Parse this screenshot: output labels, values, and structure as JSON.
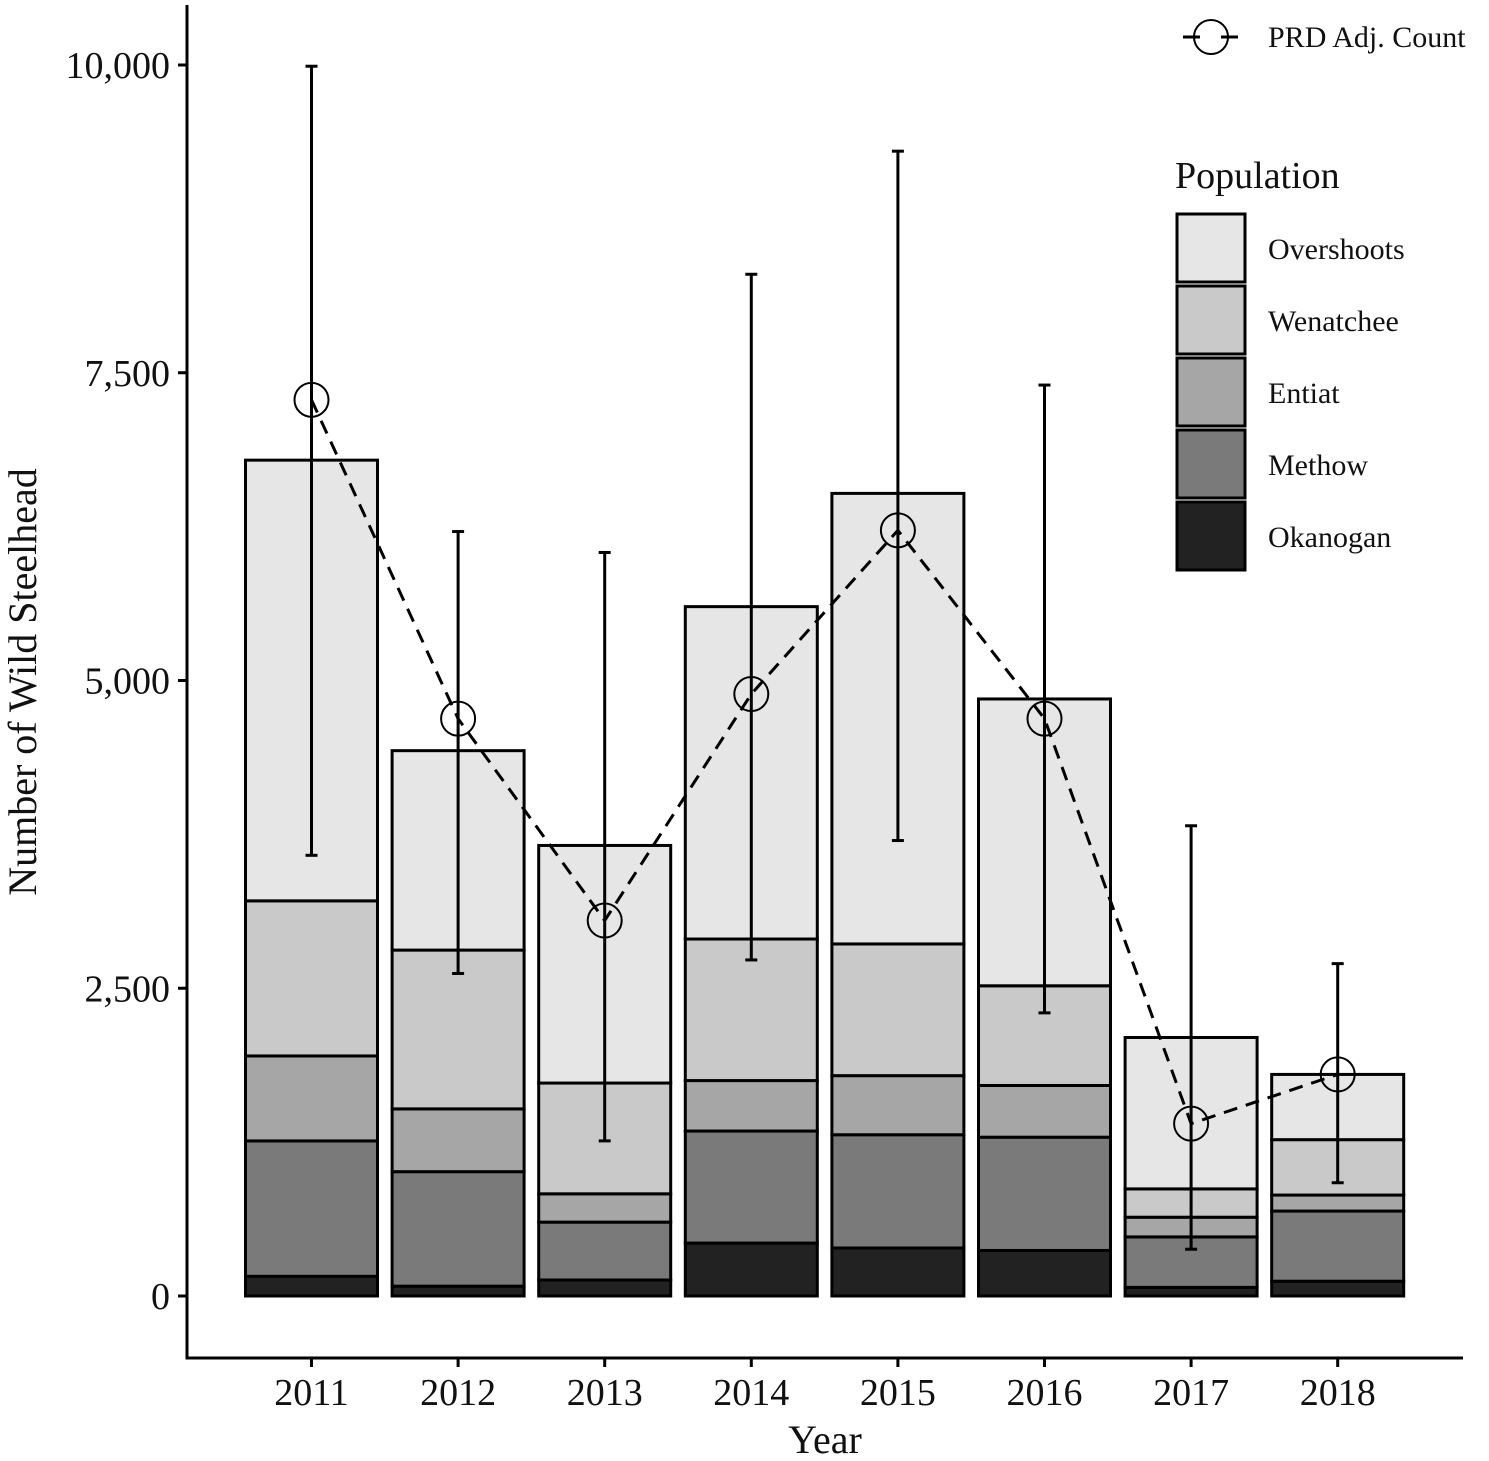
{
  "chart_data": {
    "type": "bar",
    "stacked": true,
    "xlabel": "Year",
    "ylabel": "Number of Wild Steelhead",
    "ylim": [
      -500,
      10500
    ],
    "y_ticks": [
      0,
      2500,
      5000,
      7500,
      10000
    ],
    "y_tick_labels": [
      "0",
      "2,500",
      "5,000",
      "7,500",
      "10,000"
    ],
    "categories": [
      "2011",
      "2012",
      "2013",
      "2014",
      "2015",
      "2016",
      "2017",
      "2018"
    ],
    "series": [
      {
        "name": "Okanogan",
        "color": "#222222",
        "values": [
          160,
          80,
          130,
          430,
          390,
          370,
          70,
          120
        ]
      },
      {
        "name": "Methow",
        "color": "#7a7a7a",
        "values": [
          1100,
          930,
          470,
          910,
          920,
          920,
          410,
          570
        ]
      },
      {
        "name": "Entiat",
        "color": "#a6a6a6",
        "values": [
          690,
          510,
          230,
          410,
          480,
          420,
          160,
          130
        ]
      },
      {
        "name": "Wenatchee",
        "color": "#c9c9c9",
        "values": [
          1260,
          1290,
          900,
          1150,
          1070,
          810,
          230,
          450
        ]
      },
      {
        "name": "Overshoots",
        "color": "#e6e6e6",
        "values": [
          3580,
          1620,
          1930,
          2700,
          3660,
          2330,
          1230,
          530
        ]
      }
    ],
    "line_series": {
      "name": "PRD Adj. Count",
      "style": "dashed",
      "marker": "open-circle",
      "values": [
        7280,
        4690,
        3050,
        4890,
        6220,
        4690,
        1400,
        1800
      ],
      "error_low": [
        3580,
        2620,
        1260,
        2730,
        3700,
        2300,
        380,
        920
      ],
      "error_high": [
        9990,
        6210,
        6040,
        8300,
        9300,
        7400,
        3820,
        2700
      ]
    },
    "legend": {
      "title": "Population",
      "position": "top-right"
    },
    "grid": false
  }
}
